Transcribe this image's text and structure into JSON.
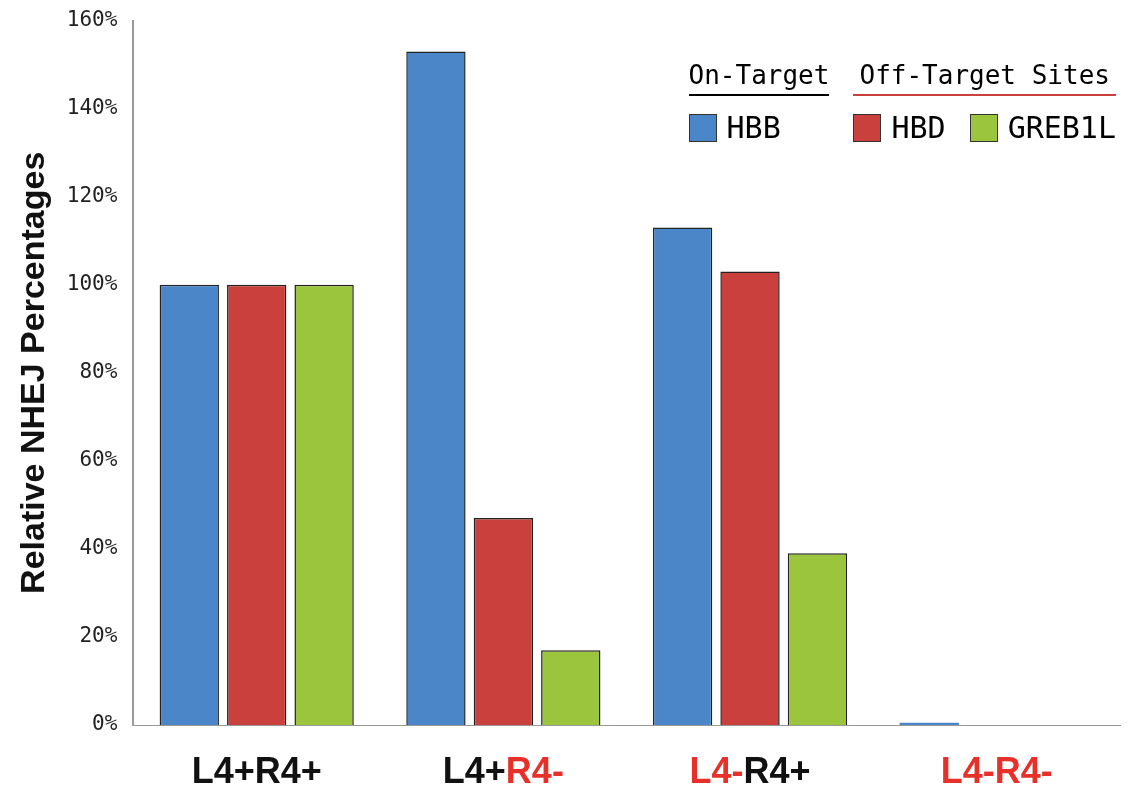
{
  "chart_data": {
    "type": "bar",
    "ylabel": "Relative NHEJ Percentages",
    "categories": [
      "L4+R4+",
      "L4+R4-",
      "L4-R4+",
      "L4-R4-"
    ],
    "series": [
      {
        "name": "HBB",
        "color": "#4a86c8",
        "values": [
          100,
          153,
          113,
          0.5
        ]
      },
      {
        "name": "HBD",
        "color": "#c9403c",
        "values": [
          100,
          47,
          103,
          0
        ]
      },
      {
        "name": "GREB1L",
        "color": "#9bc53d",
        "values": [
          100,
          17,
          39,
          0
        ]
      }
    ],
    "ylim": [
      0,
      160
    ],
    "yticks": [
      {
        "value": 0,
        "label": "0%"
      },
      {
        "value": 20,
        "label": "20%"
      },
      {
        "value": 40,
        "label": "40%"
      },
      {
        "value": 60,
        "label": "60%"
      },
      {
        "value": 80,
        "label": "80%"
      },
      {
        "value": 100,
        "label": "100%"
      },
      {
        "value": 120,
        "label": "120%"
      },
      {
        "value": 140,
        "label": "140%"
      },
      {
        "value": 160,
        "label": "160%"
      }
    ],
    "grid": false,
    "legend": "top right",
    "annotations": [
      "On-Target",
      "Off-Target Sites"
    ]
  }
}
